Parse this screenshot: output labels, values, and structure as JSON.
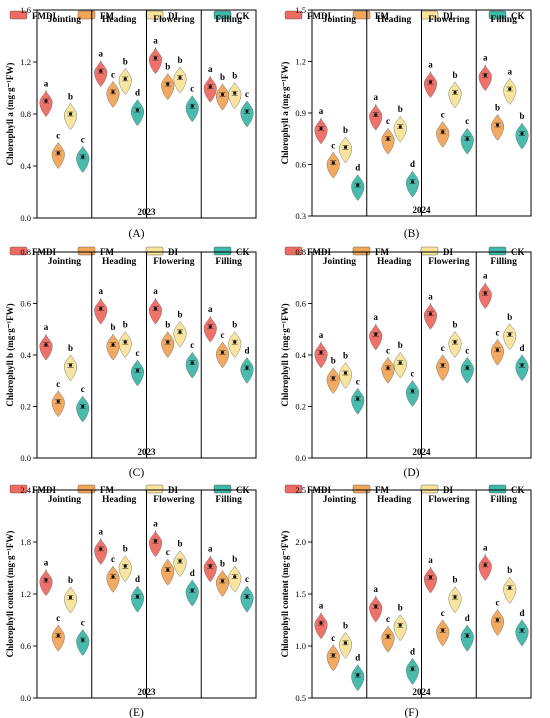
{
  "legend": [
    "FMDI",
    "FM",
    "DI",
    "CK"
  ],
  "colors": {
    "FMDI": "#ee6b63",
    "FM": "#f2a65a",
    "DI": "#f7e49a",
    "CK": "#3fb8a8"
  },
  "stages": [
    "Jointing",
    "Heading",
    "Flowering",
    "Filling"
  ],
  "chart_data": [
    {
      "type": "violin",
      "panel": "(A)",
      "year": "2023",
      "ylabel": "Chlorophyll a (mg·g⁻¹FW)",
      "ylim": [
        0.0,
        1.6
      ],
      "yticks": [
        "0.0",
        "0.4",
        "0.8",
        "1.2",
        "1.6"
      ],
      "series": [
        {
          "name": "FMDI",
          "values": [
            0.9,
            1.13,
            1.23,
            1.01
          ]
        },
        {
          "name": "FM",
          "values": [
            0.5,
            0.97,
            1.03,
            0.95
          ]
        },
        {
          "name": "DI",
          "values": [
            0.8,
            1.07,
            1.08,
            0.96
          ]
        },
        {
          "name": "CK",
          "values": [
            0.47,
            0.83,
            0.86,
            0.82
          ]
        }
      ],
      "letters": [
        [
          "a",
          "c",
          "b",
          "c"
        ],
        [
          "a",
          "c",
          "b",
          "d"
        ],
        [
          "a",
          "b",
          "b",
          "c"
        ],
        [
          "a",
          "b",
          "b",
          "c"
        ]
      ]
    },
    {
      "type": "violin",
      "panel": "(B)",
      "year": "2024",
      "ylabel": "Chlorophyll a (mg·g⁻¹FW)",
      "ylim": [
        0.3,
        1.5
      ],
      "yticks": [
        "0.3",
        "0.6",
        "0.9",
        "1.2",
        "1.5"
      ],
      "series": [
        {
          "name": "FMDI",
          "values": [
            0.81,
            0.89,
            1.08,
            1.12
          ]
        },
        {
          "name": "FM",
          "values": [
            0.61,
            0.75,
            0.79,
            0.83
          ]
        },
        {
          "name": "DI",
          "values": [
            0.7,
            0.82,
            1.02,
            1.04
          ]
        },
        {
          "name": "CK",
          "values": [
            0.48,
            0.5,
            0.75,
            0.78
          ]
        }
      ],
      "letters": [
        [
          "a",
          "c",
          "b",
          "d"
        ],
        [
          "a",
          "c",
          "b",
          "d"
        ],
        [
          "a",
          "c",
          "b",
          "c"
        ],
        [
          "a",
          "b",
          "a",
          "b"
        ]
      ]
    },
    {
      "type": "violin",
      "panel": "(C)",
      "year": "2023",
      "ylabel": "Chlorophyll b (mg·g⁻¹FW)",
      "ylim": [
        0.0,
        0.8
      ],
      "yticks": [
        "0.0",
        "0.2",
        "0.4",
        "0.6",
        "0.8"
      ],
      "series": [
        {
          "name": "FMDI",
          "values": [
            0.44,
            0.58,
            0.58,
            0.51
          ]
        },
        {
          "name": "FM",
          "values": [
            0.22,
            0.44,
            0.45,
            0.41
          ]
        },
        {
          "name": "DI",
          "values": [
            0.36,
            0.45,
            0.49,
            0.45
          ]
        },
        {
          "name": "CK",
          "values": [
            0.2,
            0.34,
            0.37,
            0.35
          ]
        }
      ],
      "letters": [
        [
          "a",
          "c",
          "b",
          "c"
        ],
        [
          "a",
          "b",
          "b",
          "c"
        ],
        [
          "a",
          "b",
          "b",
          "c"
        ],
        [
          "a",
          "c",
          "b",
          "d"
        ]
      ]
    },
    {
      "type": "violin",
      "panel": "(D)",
      "year": "2024",
      "ylabel": "Chlorophyll b (mg·g⁻¹FW)",
      "ylim": [
        0.0,
        0.8
      ],
      "yticks": [
        "0.0",
        "0.2",
        "0.4",
        "0.6",
        "0.8"
      ],
      "series": [
        {
          "name": "FMDI",
          "values": [
            0.41,
            0.48,
            0.56,
            0.64
          ]
        },
        {
          "name": "FM",
          "values": [
            0.31,
            0.35,
            0.36,
            0.42
          ]
        },
        {
          "name": "DI",
          "values": [
            0.33,
            0.37,
            0.45,
            0.48
          ]
        },
        {
          "name": "CK",
          "values": [
            0.23,
            0.26,
            0.35,
            0.36
          ]
        }
      ],
      "letters": [
        [
          "a",
          "b",
          "b",
          "c"
        ],
        [
          "a",
          "c",
          "b",
          "c"
        ],
        [
          "a",
          "c",
          "b",
          "c"
        ],
        [
          "a",
          "c",
          "b",
          "d"
        ]
      ]
    },
    {
      "type": "violin",
      "panel": "(E)",
      "year": "2023",
      "ylabel": "Chlorophyll content (mg·g⁻¹FW)",
      "ylim": [
        0.0,
        2.4
      ],
      "yticks": [
        "0.0",
        "0.6",
        "1.2",
        "1.8",
        "2.4"
      ],
      "series": [
        {
          "name": "FMDI",
          "values": [
            1.36,
            1.72,
            1.81,
            1.52
          ]
        },
        {
          "name": "FM",
          "values": [
            0.72,
            1.4,
            1.48,
            1.35
          ]
        },
        {
          "name": "DI",
          "values": [
            1.16,
            1.52,
            1.58,
            1.4
          ]
        },
        {
          "name": "CK",
          "values": [
            0.67,
            1.17,
            1.24,
            1.17
          ]
        }
      ],
      "letters": [
        [
          "a",
          "c",
          "b",
          "c"
        ],
        [
          "a",
          "c",
          "b",
          "d"
        ],
        [
          "a",
          "c",
          "b",
          "d"
        ],
        [
          "a",
          "b",
          "b",
          "c"
        ]
      ]
    },
    {
      "type": "violin",
      "panel": "(F)",
      "year": "2024",
      "ylabel": "Chlorophyll content (mg·g⁻¹FW)",
      "ylim": [
        0.5,
        2.5
      ],
      "yticks": [
        "0.5",
        "1.0",
        "1.5",
        "2.0",
        "2.5"
      ],
      "series": [
        {
          "name": "FMDI",
          "values": [
            1.22,
            1.38,
            1.66,
            1.78
          ]
        },
        {
          "name": "FM",
          "values": [
            0.91,
            1.09,
            1.15,
            1.25
          ]
        },
        {
          "name": "DI",
          "values": [
            1.03,
            1.2,
            1.47,
            1.56
          ]
        },
        {
          "name": "CK",
          "values": [
            0.72,
            0.78,
            1.1,
            1.15
          ]
        }
      ],
      "letters": [
        [
          "a",
          "c",
          "b",
          "d"
        ],
        [
          "a",
          "c",
          "b",
          "d"
        ],
        [
          "a",
          "c",
          "b",
          "d"
        ],
        [
          "a",
          "c",
          "b",
          "d"
        ]
      ]
    }
  ]
}
